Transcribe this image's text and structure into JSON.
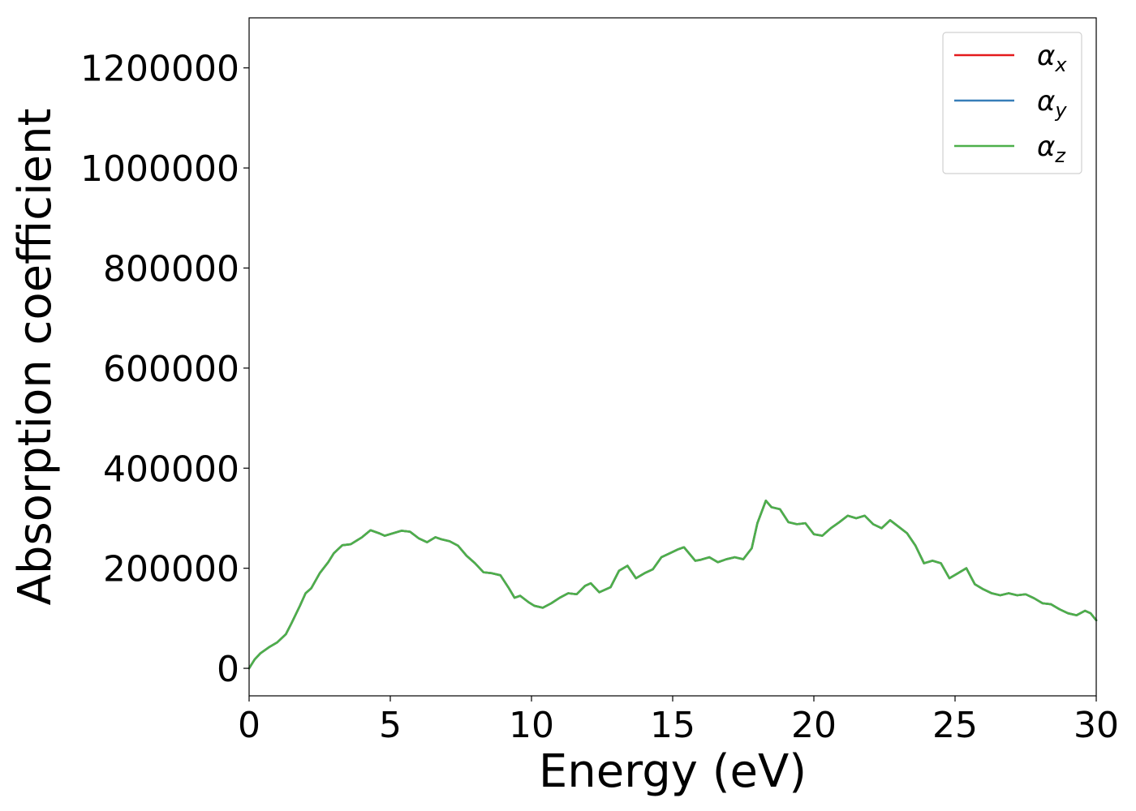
{
  "chart_data": {
    "type": "line",
    "title": "",
    "xlabel": "Energy (eV)",
    "ylabel": "Absorption coefficient",
    "xlim": [
      0,
      30
    ],
    "ylim": [
      -55000,
      1300000
    ],
    "xticks": [
      0,
      5,
      10,
      15,
      20,
      25,
      30
    ],
    "xtick_labels": [
      "0",
      "5",
      "10",
      "15",
      "20",
      "25",
      "30"
    ],
    "yticks": [
      0,
      200000,
      400000,
      600000,
      800000,
      1000000,
      1200000
    ],
    "ytick_labels": [
      "0",
      "200000",
      "400000",
      "600000",
      "800000",
      "1000000",
      "1200000"
    ],
    "grid": false,
    "legend_position": "top-right",
    "x": [
      0,
      0.2,
      0.4,
      0.7,
      1.0,
      1.3,
      1.5,
      1.8,
      2.0,
      2.2,
      2.5,
      2.8,
      3.0,
      3.3,
      3.6,
      3.8,
      4.0,
      4.3,
      4.6,
      4.8,
      5.1,
      5.4,
      5.7,
      6.0,
      6.3,
      6.6,
      6.8,
      7.1,
      7.4,
      7.7,
      8.0,
      8.3,
      8.6,
      8.9,
      9.2,
      9.4,
      9.6,
      9.9,
      10.1,
      10.4,
      10.7,
      11.0,
      11.3,
      11.6,
      11.9,
      12.1,
      12.4,
      12.8,
      13.1,
      13.4,
      13.7,
      14.0,
      14.3,
      14.6,
      14.9,
      15.2,
      15.4,
      15.8,
      16.0,
      16.3,
      16.6,
      16.9,
      17.2,
      17.5,
      17.8,
      18.0,
      18.3,
      18.5,
      18.8,
      19.1,
      19.4,
      19.7,
      20.0,
      20.3,
      20.6,
      20.9,
      21.2,
      21.5,
      21.8,
      22.1,
      22.4,
      22.7,
      23.0,
      23.3,
      23.6,
      23.9,
      24.2,
      24.5,
      24.8,
      25.1,
      25.4,
      25.7,
      26.0,
      26.3,
      26.6,
      26.9,
      27.2,
      27.5,
      27.8,
      28.1,
      28.4,
      28.7,
      29.0,
      29.3,
      29.6,
      29.8,
      30.0
    ],
    "series": [
      {
        "name": "αx",
        "color": "#e41a1c",
        "values": [
          0,
          18000,
          30000,
          42000,
          52000,
          68000,
          90000,
          125000,
          150000,
          160000,
          190000,
          212000,
          230000,
          246000,
          248000,
          255000,
          262000,
          276000,
          270000,
          265000,
          270000,
          275000,
          273000,
          260000,
          252000,
          262000,
          258000,
          254000,
          245000,
          225000,
          210000,
          192000,
          190000,
          186000,
          160000,
          141000,
          145000,
          132000,
          125000,
          121000,
          130000,
          141000,
          150000,
          148000,
          165000,
          170000,
          152000,
          162000,
          195000,
          205000,
          180000,
          190000,
          198000,
          222000,
          230000,
          238000,
          242000,
          215000,
          217000,
          222000,
          212000,
          218000,
          222000,
          218000,
          240000,
          290000,
          335000,
          322000,
          318000,
          292000,
          288000,
          290000,
          268000,
          265000,
          280000,
          292000,
          305000,
          300000,
          305000,
          288000,
          280000,
          296000,
          283000,
          270000,
          245000,
          210000,
          215000,
          210000,
          180000,
          190000,
          200000,
          168000,
          158000,
          150000,
          146000,
          150000,
          146000,
          148000,
          140000,
          130000,
          128000,
          118000,
          110000,
          106000,
          115000,
          110000,
          96000
        ]
      },
      {
        "name": "αy",
        "color": "#377eb8",
        "values": [
          0,
          18000,
          30000,
          42000,
          52000,
          68000,
          90000,
          125000,
          150000,
          160000,
          190000,
          212000,
          230000,
          246000,
          248000,
          255000,
          262000,
          276000,
          270000,
          265000,
          270000,
          275000,
          273000,
          260000,
          252000,
          262000,
          258000,
          254000,
          245000,
          225000,
          210000,
          192000,
          190000,
          186000,
          160000,
          141000,
          145000,
          132000,
          125000,
          121000,
          130000,
          141000,
          150000,
          148000,
          165000,
          170000,
          152000,
          162000,
          195000,
          205000,
          180000,
          190000,
          198000,
          222000,
          230000,
          238000,
          242000,
          215000,
          217000,
          222000,
          212000,
          218000,
          222000,
          218000,
          240000,
          290000,
          335000,
          322000,
          318000,
          292000,
          288000,
          290000,
          268000,
          265000,
          280000,
          292000,
          305000,
          300000,
          305000,
          288000,
          280000,
          296000,
          283000,
          270000,
          245000,
          210000,
          215000,
          210000,
          180000,
          190000,
          200000,
          168000,
          158000,
          150000,
          146000,
          150000,
          146000,
          148000,
          140000,
          130000,
          128000,
          118000,
          110000,
          106000,
          115000,
          110000,
          96000
        ]
      },
      {
        "name": "αz",
        "color": "#4daf4a",
        "values": [
          0,
          18000,
          30000,
          42000,
          52000,
          68000,
          90000,
          125000,
          150000,
          160000,
          190000,
          212000,
          230000,
          246000,
          248000,
          255000,
          262000,
          276000,
          270000,
          265000,
          270000,
          275000,
          273000,
          260000,
          252000,
          262000,
          258000,
          254000,
          245000,
          225000,
          210000,
          192000,
          190000,
          186000,
          160000,
          141000,
          145000,
          132000,
          125000,
          121000,
          130000,
          141000,
          150000,
          148000,
          165000,
          170000,
          152000,
          162000,
          195000,
          205000,
          180000,
          190000,
          198000,
          222000,
          230000,
          238000,
          242000,
          215000,
          217000,
          222000,
          212000,
          218000,
          222000,
          218000,
          240000,
          290000,
          335000,
          322000,
          318000,
          292000,
          288000,
          290000,
          268000,
          265000,
          280000,
          292000,
          305000,
          300000,
          305000,
          288000,
          280000,
          296000,
          283000,
          270000,
          245000,
          210000,
          215000,
          210000,
          180000,
          190000,
          200000,
          168000,
          158000,
          150000,
          146000,
          150000,
          146000,
          148000,
          140000,
          130000,
          128000,
          118000,
          110000,
          106000,
          115000,
          110000,
          96000
        ]
      }
    ],
    "legend": [
      {
        "symbol": "α",
        "sub": "x",
        "color": "#e41a1c"
      },
      {
        "symbol": "α",
        "sub": "y",
        "color": "#377eb8"
      },
      {
        "symbol": "α",
        "sub": "z",
        "color": "#4daf4a"
      }
    ]
  }
}
